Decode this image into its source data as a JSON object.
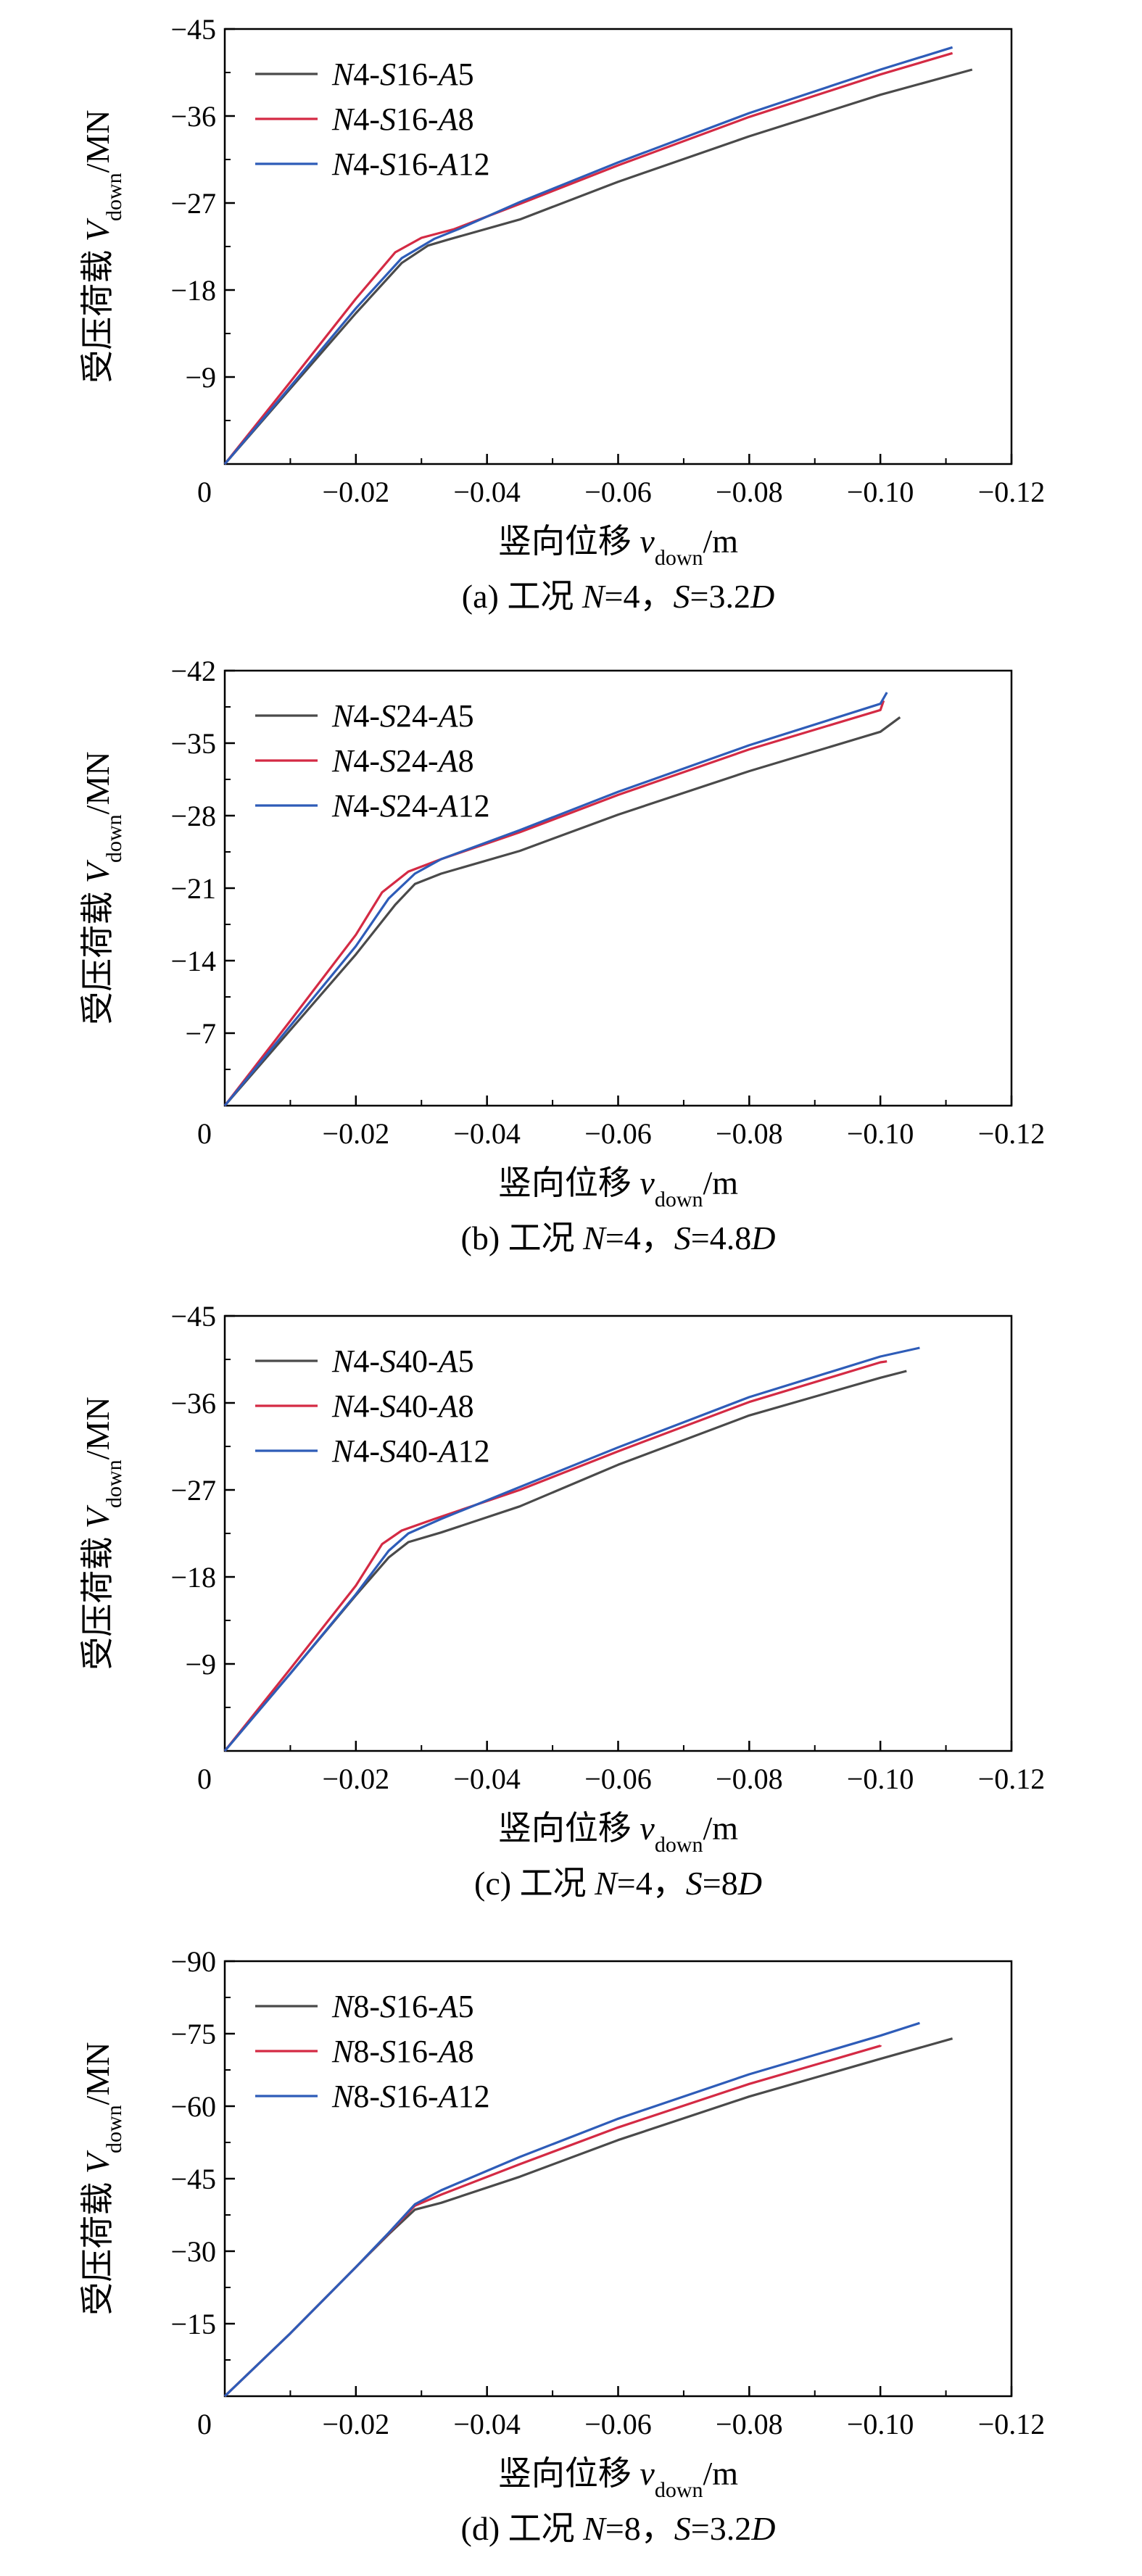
{
  "chart_data": [
    {
      "type": "line",
      "caption": "(a) 工况 N=4，S=3.2D",
      "xlabel": "竖向位移 v_down/m",
      "ylabel": "受压荷载 V_down/MN",
      "xlim": [
        0,
        -0.12
      ],
      "ylim": [
        0,
        -45
      ],
      "x_ticks": [
        -0.02,
        -0.04,
        -0.06,
        -0.08,
        -0.1,
        -0.12
      ],
      "x_tick_labels": [
        "−0.02",
        "−0.04",
        "−0.06",
        "−0.08",
        "−0.10",
        "−0.12"
      ],
      "y_ticks": [
        -9,
        -18,
        -27,
        -36,
        -45
      ],
      "y_tick_labels": [
        "−9",
        "−18",
        "−27",
        "−36",
        "−45"
      ],
      "origin_label": "0",
      "legend_position": "top-left",
      "series": [
        {
          "name": "N4-S16-A5",
          "color": "#4a4a4a",
          "x": [
            0,
            -0.01,
            -0.02,
            -0.027,
            -0.031,
            -0.034,
            -0.045,
            -0.06,
            -0.08,
            -0.1,
            -0.114
          ],
          "y": [
            0,
            -7.8,
            -15.6,
            -20.8,
            -22.6,
            -23.2,
            -25.3,
            -29.2,
            -33.9,
            -38.2,
            -40.8
          ]
        },
        {
          "name": "N4-S16-A8",
          "color": "#d42a44",
          "x": [
            0,
            -0.01,
            -0.02,
            -0.026,
            -0.03,
            -0.035,
            -0.045,
            -0.06,
            -0.08,
            -0.1,
            -0.111
          ],
          "y": [
            0,
            -8.5,
            -17.1,
            -21.9,
            -23.4,
            -24.3,
            -26.9,
            -30.9,
            -35.9,
            -40.3,
            -42.5
          ]
        },
        {
          "name": "N4-S16-A12",
          "color": "#2e5cb8",
          "x": [
            0,
            -0.01,
            -0.02,
            -0.027,
            -0.032,
            -0.036,
            -0.045,
            -0.06,
            -0.08,
            -0.1,
            -0.111
          ],
          "y": [
            0,
            -8.0,
            -16.1,
            -21.3,
            -23.3,
            -24.4,
            -27.1,
            -31.2,
            -36.3,
            -40.8,
            -43.1
          ]
        }
      ]
    },
    {
      "type": "line",
      "caption": "(b) 工况 N=4，S=4.8D",
      "xlabel": "竖向位移 v_down/m",
      "ylabel": "受压荷载 V_down/MN",
      "xlim": [
        0,
        -0.12
      ],
      "ylim": [
        0,
        -42
      ],
      "x_ticks": [
        -0.02,
        -0.04,
        -0.06,
        -0.08,
        -0.1,
        -0.12
      ],
      "x_tick_labels": [
        "−0.02",
        "−0.04",
        "−0.06",
        "−0.08",
        "−0.10",
        "−0.12"
      ],
      "y_ticks": [
        -7,
        -14,
        -21,
        -28,
        -35,
        -42
      ],
      "y_tick_labels": [
        "−7",
        "−14",
        "−21",
        "−28",
        "−35",
        "−42"
      ],
      "origin_label": "0",
      "legend_position": "top-left",
      "series": [
        {
          "name": "N4-S24-A5",
          "color": "#4a4a4a",
          "x": [
            0,
            -0.01,
            -0.02,
            -0.026,
            -0.029,
            -0.033,
            -0.045,
            -0.06,
            -0.08,
            -0.1,
            -0.103
          ],
          "y": [
            0,
            -7.3,
            -14.6,
            -19.4,
            -21.4,
            -22.4,
            -24.6,
            -28.1,
            -32.3,
            -36.1,
            -37.5
          ]
        },
        {
          "name": "N4-S24-A8",
          "color": "#d42a44",
          "x": [
            0,
            -0.01,
            -0.02,
            -0.024,
            -0.028,
            -0.033,
            -0.045,
            -0.06,
            -0.08,
            -0.1,
            -0.1005
          ],
          "y": [
            0,
            -8.2,
            -16.5,
            -20.6,
            -22.6,
            -23.8,
            -26.4,
            -30.0,
            -34.4,
            -38.2,
            -39.1
          ]
        },
        {
          "name": "N4-S24-A12",
          "color": "#2e5cb8",
          "x": [
            0,
            -0.01,
            -0.02,
            -0.025,
            -0.029,
            -0.033,
            -0.045,
            -0.06,
            -0.08,
            -0.1,
            -0.101
          ],
          "y": [
            0,
            -7.7,
            -15.4,
            -20.0,
            -22.4,
            -23.8,
            -26.6,
            -30.3,
            -34.8,
            -38.8,
            -39.9
          ]
        }
      ]
    },
    {
      "type": "line",
      "caption": "(c) 工况 N=4，S=8D",
      "xlabel": "竖向位移 v_down/m",
      "ylabel": "受压荷载 V_down/MN",
      "xlim": [
        0,
        -0.12
      ],
      "ylim": [
        0,
        -45
      ],
      "x_ticks": [
        -0.02,
        -0.04,
        -0.06,
        -0.08,
        -0.1,
        -0.12
      ],
      "x_tick_labels": [
        "−0.02",
        "−0.04",
        "−0.06",
        "−0.08",
        "−0.10",
        "−0.12"
      ],
      "y_ticks": [
        -9,
        -18,
        -27,
        -36,
        -45
      ],
      "y_tick_labels": [
        "−9",
        "−18",
        "−27",
        "−36",
        "−45"
      ],
      "origin_label": "0",
      "legend_position": "top-left",
      "series": [
        {
          "name": "N4-S40-A5",
          "color": "#4a4a4a",
          "x": [
            0,
            -0.01,
            -0.02,
            -0.025,
            -0.028,
            -0.033,
            -0.045,
            -0.06,
            -0.08,
            -0.1,
            -0.104
          ],
          "y": [
            0,
            -8.0,
            -16.1,
            -20.0,
            -21.6,
            -22.6,
            -25.3,
            -29.6,
            -34.7,
            -38.6,
            -39.3
          ]
        },
        {
          "name": "N4-S40-A8",
          "color": "#d42a44",
          "x": [
            0,
            -0.01,
            -0.02,
            -0.024,
            -0.027,
            -0.032,
            -0.045,
            -0.06,
            -0.08,
            -0.1,
            -0.101
          ],
          "y": [
            0,
            -8.5,
            -17.1,
            -21.4,
            -22.8,
            -24.0,
            -27.0,
            -31.0,
            -36.1,
            -40.2,
            -40.3
          ]
        },
        {
          "name": "N4-S40-A12",
          "color": "#2e5cb8",
          "x": [
            0,
            -0.01,
            -0.02,
            -0.025,
            -0.028,
            -0.033,
            -0.045,
            -0.06,
            -0.08,
            -0.1,
            -0.106
          ],
          "y": [
            0,
            -8.0,
            -16.2,
            -20.7,
            -22.5,
            -24.0,
            -27.3,
            -31.4,
            -36.6,
            -40.8,
            -41.7
          ]
        }
      ]
    },
    {
      "type": "line",
      "caption": "(d) 工况 N=8，S=3.2D",
      "xlabel": "竖向位移 v_down/m",
      "ylabel": "受压荷载 V_down/MN",
      "xlim": [
        0,
        -0.12
      ],
      "ylim": [
        0,
        -90
      ],
      "x_ticks": [
        -0.02,
        -0.04,
        -0.06,
        -0.08,
        -0.1,
        -0.12
      ],
      "x_tick_labels": [
        "−0.02",
        "−0.04",
        "−0.06",
        "−0.08",
        "−0.10",
        "−0.12"
      ],
      "y_ticks": [
        -15,
        -30,
        -45,
        -60,
        -75,
        -90
      ],
      "y_tick_labels": [
        "−15",
        "−30",
        "−45",
        "−60",
        "−75",
        "−90"
      ],
      "origin_label": "0",
      "legend_position": "top-left",
      "series": [
        {
          "name": "N8-S16-A5",
          "color": "#4a4a4a",
          "x": [
            0,
            -0.01,
            -0.02,
            -0.025,
            -0.029,
            -0.033,
            -0.045,
            -0.06,
            -0.08,
            -0.1,
            -0.111
          ],
          "y": [
            0,
            -13.0,
            -26.7,
            -33.5,
            -38.6,
            -40.0,
            -45.4,
            -53.0,
            -62.0,
            -69.8,
            -74.0
          ]
        },
        {
          "name": "N8-S16-A8",
          "color": "#d42a44",
          "x": [
            0,
            -0.01,
            -0.02,
            -0.025,
            -0.029,
            -0.033,
            -0.045,
            -0.06,
            -0.08,
            -0.1,
            -0.1
          ],
          "y": [
            0,
            -13.0,
            -26.7,
            -33.7,
            -39.4,
            -41.7,
            -48.0,
            -55.6,
            -64.6,
            -72.5,
            -72.6
          ]
        },
        {
          "name": "N8-S16-A12",
          "color": "#2e5cb8",
          "x": [
            0,
            -0.01,
            -0.02,
            -0.025,
            -0.029,
            -0.033,
            -0.045,
            -0.06,
            -0.08,
            -0.1,
            -0.106
          ],
          "y": [
            0,
            -13.0,
            -26.7,
            -33.8,
            -39.7,
            -42.6,
            -49.5,
            -57.4,
            -66.6,
            -74.6,
            -77.2
          ]
        }
      ]
    }
  ]
}
